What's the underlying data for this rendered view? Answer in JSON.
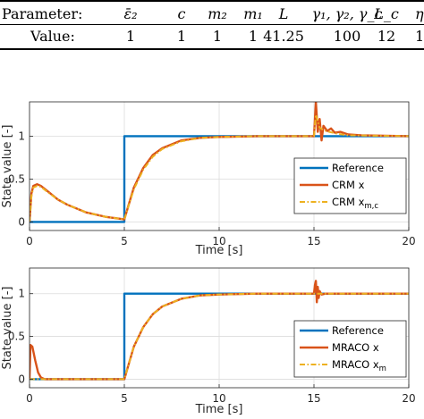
{
  "table": {
    "header": [
      "Parameter:",
      "ε̄₂",
      "c",
      "m₂",
      "m₁",
      "L",
      "γ₁, γ₂, γ_c",
      "L_c",
      "η"
    ],
    "values": [
      "Value:",
      "1",
      "1",
      "1",
      "1",
      "41.25",
      "100",
      "12",
      "1"
    ]
  },
  "chart_data": [
    {
      "type": "line",
      "xlabel": "Time [s]",
      "ylabel": "State value [-]",
      "xlim": [
        0,
        20
      ],
      "ylim": [
        -0.1,
        1.4
      ],
      "xticks": [
        "0",
        "5",
        "10",
        "15",
        "20"
      ],
      "yticks": [
        "0",
        "0.5",
        "1"
      ],
      "grid": true,
      "legend": "bottom-right",
      "series": [
        {
          "name": "Reference",
          "color": "#0072BD",
          "style": "solid",
          "x": [
            0,
            5,
            5,
            20
          ],
          "y": [
            0,
            0,
            1,
            1
          ]
        },
        {
          "name": "CRM x",
          "color": "#D95319",
          "style": "solid",
          "x": [
            0,
            0.1,
            0.2,
            0.4,
            0.6,
            1.0,
            1.5,
            2,
            3,
            4,
            5,
            5.5,
            6,
            6.5,
            7,
            8,
            9,
            10,
            12,
            15,
            15.1,
            15.2,
            15.3,
            15.4,
            15.5,
            15.7,
            15.9,
            16.1,
            16.4,
            16.8,
            17.5,
            20
          ],
          "y": [
            0,
            0.33,
            0.42,
            0.44,
            0.42,
            0.35,
            0.26,
            0.2,
            0.11,
            0.06,
            0.03,
            0.4,
            0.63,
            0.78,
            0.86,
            0.95,
            0.98,
            0.99,
            1.0,
            1.0,
            1.4,
            1.05,
            1.2,
            0.95,
            1.12,
            1.06,
            1.09,
            1.04,
            1.05,
            1.02,
            1.01,
            1.0
          ]
        },
        {
          "name": "CRM x_m,c",
          "color": "#EDB120",
          "style": "dashdot",
          "x": [
            0,
            0.1,
            0.2,
            0.4,
            0.6,
            1.0,
            1.5,
            2,
            3,
            4,
            5,
            5.5,
            6,
            6.5,
            7,
            8,
            9,
            10,
            12,
            15,
            15.1,
            15.3,
            15.5,
            15.8,
            16.2,
            16.8,
            20
          ],
          "y": [
            0,
            0.3,
            0.4,
            0.42,
            0.41,
            0.34,
            0.26,
            0.2,
            0.11,
            0.06,
            0.03,
            0.38,
            0.61,
            0.76,
            0.85,
            0.94,
            0.98,
            0.99,
            1.0,
            1.0,
            1.25,
            1.1,
            1.07,
            1.05,
            1.03,
            1.01,
            1.0
          ]
        }
      ]
    },
    {
      "type": "line",
      "xlabel": "Time [s]",
      "ylabel": "State value [-]",
      "xlim": [
        0,
        20
      ],
      "ylim": [
        -0.1,
        1.3
      ],
      "xticks": [
        "0",
        "5",
        "10",
        "15",
        "20"
      ],
      "yticks": [
        "0",
        "0.5",
        "1"
      ],
      "grid": true,
      "legend": "bottom-right",
      "series": [
        {
          "name": "Reference",
          "color": "#0072BD",
          "style": "solid",
          "x": [
            0,
            5,
            5,
            20
          ],
          "y": [
            0,
            0,
            1,
            1
          ]
        },
        {
          "name": "MRACO x",
          "color": "#D95319",
          "style": "solid",
          "x": [
            0,
            0.05,
            0.15,
            0.3,
            0.45,
            0.6,
            0.8,
            5,
            5.5,
            6,
            6.5,
            7,
            8,
            9,
            10,
            12,
            15,
            15.05,
            15.1,
            15.15,
            15.2,
            15.25,
            15.3,
            15.4,
            15.6,
            20
          ],
          "y": [
            0,
            0.4,
            0.38,
            0.22,
            0.08,
            0.02,
            0,
            0,
            0.38,
            0.61,
            0.76,
            0.85,
            0.94,
            0.98,
            0.99,
            1.0,
            1.0,
            1.1,
            1.15,
            0.9,
            1.08,
            0.95,
            1.03,
            0.99,
            1.0,
            1.0
          ]
        },
        {
          "name": "MRACO x_m",
          "color": "#EDB120",
          "style": "dashdot",
          "x": [
            0,
            5,
            5.5,
            6,
            6.5,
            7,
            8,
            9,
            10,
            12,
            20
          ],
          "y": [
            0,
            0,
            0.38,
            0.61,
            0.76,
            0.85,
            0.94,
            0.98,
            0.99,
            1.0,
            1.0
          ]
        }
      ]
    }
  ]
}
